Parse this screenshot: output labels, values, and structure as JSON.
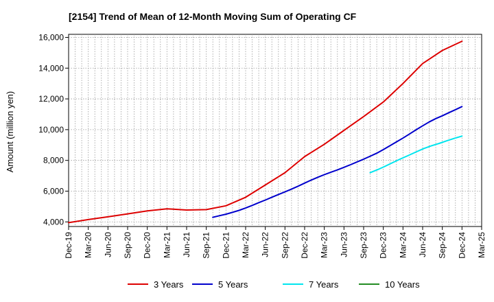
{
  "chart_data": {
    "type": "line",
    "title": "[2154]  Trend of Mean of 12-Month Moving Sum of Operating CF",
    "xlabel": "",
    "ylabel": "Amount (million yen)",
    "ylim": [
      3700,
      16200
    ],
    "yticks": [
      4000,
      6000,
      8000,
      10000,
      12000,
      14000,
      16000
    ],
    "ytick_labels": [
      "4,000",
      "6,000",
      "8,000",
      "10,000",
      "12,000",
      "14,000",
      "16,000"
    ],
    "xtick_labels": [
      "Dec-19",
      "Mar-20",
      "Jun-20",
      "Sep-20",
      "Dec-20",
      "Mar-21",
      "Jun-21",
      "Sep-21",
      "Dec-21",
      "Mar-22",
      "Jun-22",
      "Sep-22",
      "Dec-22",
      "Mar-23",
      "Jun-23",
      "Sep-23",
      "Dec-23",
      "Mar-24",
      "Jun-24",
      "Sep-24",
      "Dec-24",
      "Mar-25"
    ],
    "grid": true,
    "legend_position": "bottom",
    "series": [
      {
        "name": "3 Years",
        "color": "#dd0000",
        "start_index": 0,
        "values": [
          3950,
          4150,
          4330,
          4520,
          4720,
          4850,
          4770,
          4800,
          5050,
          5600,
          6400,
          7200,
          8250,
          9050,
          9950,
          10850,
          11800,
          13000,
          14300,
          15150,
          15750
        ]
      },
      {
        "name": "5 Years",
        "color": "#0000cc",
        "start_index": 7.33,
        "values": [
          4300,
          4400,
          4500,
          4620,
          4750,
          4900,
          5070,
          5250,
          5420,
          5600,
          5780,
          5950,
          6130,
          6320,
          6520,
          6720,
          6900,
          7070,
          7230,
          7380,
          7550,
          7720,
          7900,
          8080,
          8270,
          8470,
          8700,
          8950,
          9200,
          9450,
          9720,
          9990,
          10250,
          10500,
          10720,
          10900,
          11100,
          11300,
          11500
        ]
      },
      {
        "name": "7 Years",
        "color": "#00e5ee",
        "start_index": 15.33,
        "values": [
          7200,
          7400,
          7630,
          7870,
          8100,
          8320,
          8550,
          8770,
          8950,
          9100,
          9270,
          9430,
          9580
        ]
      },
      {
        "name": "10 Years",
        "color": "#228b22",
        "start_index": 21,
        "values": []
      }
    ]
  }
}
